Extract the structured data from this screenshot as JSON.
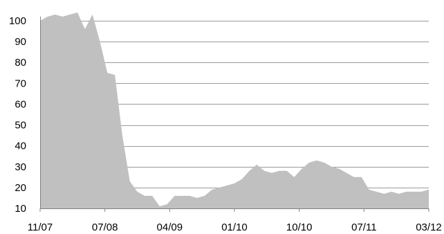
{
  "chart_data": {
    "type": "area",
    "title": "",
    "xlabel": "",
    "ylabel": "",
    "ylim": [
      10,
      100
    ],
    "y_ticks": [
      10,
      20,
      30,
      40,
      50,
      60,
      70,
      80,
      90,
      100
    ],
    "x_ticks": [
      "11/07",
      "07/08",
      "04/09",
      "01/10",
      "10/10",
      "07/11",
      "03/12"
    ],
    "grid": true,
    "legend": "none",
    "fill_color": "#c0c0c0",
    "series": [
      {
        "x": [
          "2007-11",
          "2007-12",
          "2008-01",
          "2008-02",
          "2008-03",
          "2008-04",
          "2008-05",
          "2008-06",
          "2008-07",
          "2008-08",
          "2008-09",
          "2008-10",
          "2008-11",
          "2008-12",
          "2009-01",
          "2009-02",
          "2009-03",
          "2009-04",
          "2009-05",
          "2009-06",
          "2009-07",
          "2009-08",
          "2009-09",
          "2009-10",
          "2009-11",
          "2009-12",
          "2010-01",
          "2010-02",
          "2010-03",
          "2010-04",
          "2010-05",
          "2010-06",
          "2010-07",
          "2010-08",
          "2010-09",
          "2010-10",
          "2010-11",
          "2010-12",
          "2011-01",
          "2011-02",
          "2011-03",
          "2011-04",
          "2011-05",
          "2011-06",
          "2011-07",
          "2011-08",
          "2011-09",
          "2011-10",
          "2011-11",
          "2011-12",
          "2012-01",
          "2012-02",
          "2012-03"
        ],
        "values": [
          100,
          102,
          103,
          102,
          103,
          104,
          96,
          103,
          90,
          75,
          74,
          45,
          23,
          18,
          16,
          16,
          11,
          12,
          16,
          16,
          16,
          15,
          16,
          19,
          20,
          21,
          22,
          24,
          28,
          31,
          28,
          27,
          28,
          28,
          25,
          29,
          32,
          33,
          32,
          30,
          29,
          27,
          25,
          25,
          19,
          18,
          17,
          18,
          17,
          18,
          18,
          18,
          19
        ]
      }
    ]
  }
}
